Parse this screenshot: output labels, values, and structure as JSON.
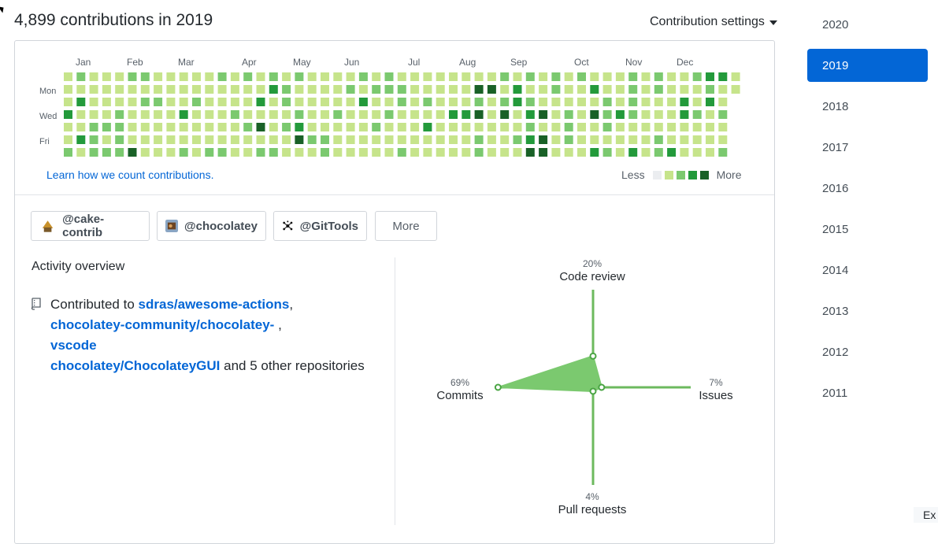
{
  "header": {
    "title": "4,899 contributions in 2019",
    "settings_label": "Contribution settings"
  },
  "graph": {
    "months": [
      "Jan",
      "Feb",
      "Mar",
      "Apr",
      "May",
      "Jun",
      "Jul",
      "Aug",
      "Sep",
      "Oct",
      "Nov",
      "Dec"
    ],
    "day_labels": [
      "Mon",
      "Wed",
      "Fri"
    ],
    "learn_link": "Learn how we count contributions.",
    "legend_less": "Less",
    "legend_more": "More",
    "colors": [
      "#ebedf0",
      "#c6e48b",
      "#7bc96f",
      "#239a3b",
      "#196127"
    ]
  },
  "orgs": [
    {
      "label": "@cake-contrib",
      "icon": "cake-contrib-avatar-icon"
    },
    {
      "label": "@chocolatey",
      "icon": "chocolatey-avatar-icon"
    },
    {
      "label": "@GitTools",
      "icon": "gittools-avatar-icon"
    }
  ],
  "more_button": "More",
  "activity": {
    "title": "Activity overview",
    "contributed_prefix": "Contributed to",
    "repos": [
      "sdras/awesome-actions",
      "chocolatey-community/chocolatey-",
      "vscode",
      "chocolatey/ChocolateyGUI"
    ],
    "separator_1": ",",
    "separator_2": ",",
    "suffix": "and 5 other repositories"
  },
  "radar": {
    "code_review": {
      "label": "Code review",
      "pct": "20%"
    },
    "issues": {
      "label": "Issues",
      "pct": "7%"
    },
    "pull_requests": {
      "label": "Pull requests",
      "pct": "4%"
    },
    "commits": {
      "label": "Commits",
      "pct": "69%"
    },
    "fill_color": "#7bc96f",
    "axis_color": "#6cb95e"
  },
  "years": [
    "2020",
    "2019",
    "2018",
    "2017",
    "2016",
    "2015",
    "2014",
    "2013",
    "2012",
    "2011"
  ],
  "selected_year": "2019",
  "corner_text": "Ex"
}
